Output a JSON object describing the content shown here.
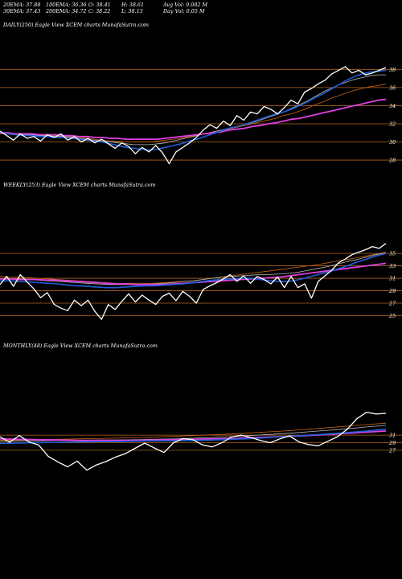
{
  "stats": {
    "ema20": "20EMA: 37.88",
    "ema100": "100EMA: 36.36",
    "open": "O: 38.41",
    "high": "H: 38.61",
    "avg_vol": "Avg Vol: 0.082  M",
    "ema30": "30EMA: 37.43",
    "ema200": "200EMA: 34.72",
    "close": "C: 38.22",
    "low": "L: 38.13",
    "day_vol": "Day Vol: 0.05 M"
  },
  "captions": {
    "daily": "DAILY(250) Eagle  View  XCEM charts MunafaSutra.com",
    "weekly": "WEEKLY(253) Eagle  View  XCEM charts MunafaSutra.com",
    "monthly": "MONTHLY(48) Eagle  View  XCEM charts MunafaSutra.com"
  },
  "colors": {
    "background": "#000000",
    "price": "#ffffff",
    "ema_blue": "#1f5fd8",
    "ema_magenta": "#e040e0",
    "ema_orange": "#c86414",
    "ema_gray": "#b8b8b8",
    "gridline": "#b4641e"
  },
  "chart_data": [
    {
      "type": "line",
      "panel": "daily",
      "yticks": [
        "38",
        "36",
        "34",
        "32",
        "30",
        "28"
      ],
      "ylim": [
        26.5,
        39.8
      ],
      "series": [
        {
          "role": "price",
          "color": "#ffffff",
          "values": [
            31.2,
            30.7,
            30.2,
            30.9,
            30.4,
            30.6,
            30.1,
            30.8,
            30.5,
            30.9,
            30.2,
            30.6,
            30.0,
            30.4,
            29.9,
            30.3,
            29.8,
            29.3,
            29.9,
            29.5,
            28.7,
            29.4,
            28.9,
            29.6,
            28.8,
            27.6,
            28.9,
            29.4,
            29.9,
            30.5,
            31.3,
            31.9,
            31.5,
            32.3,
            31.8,
            32.9,
            32.4,
            33.3,
            33.1,
            33.9,
            33.6,
            33.1,
            33.8,
            34.6,
            34.2,
            35.5,
            35.9,
            36.4,
            36.8,
            37.5,
            37.9,
            38.3,
            37.6,
            37.9,
            37.4,
            37.6,
            37.9,
            38.2
          ]
        },
        {
          "role": "ema_blue",
          "color": "#1f5fd8",
          "values": [
            31.1,
            30.9,
            30.8,
            30.7,
            30.7,
            30.6,
            30.6,
            30.5,
            30.5,
            30.4,
            30.3,
            30.2,
            30.1,
            30.0,
            29.8,
            29.6,
            29.4,
            29.3,
            29.2,
            29.1,
            29.2,
            29.4,
            29.6,
            29.8,
            30.1,
            30.3,
            30.6,
            30.9,
            31.2,
            31.5,
            31.7,
            31.9,
            32.2,
            32.5,
            32.8,
            33.1,
            33.3,
            33.6,
            34.0,
            34.4,
            34.9,
            35.3,
            35.8,
            36.3,
            36.8,
            37.2,
            37.5,
            37.7,
            37.8,
            37.9
          ]
        },
        {
          "role": "ema_gray",
          "color": "#b8b8b8",
          "values": [
            31.0,
            30.9,
            30.9,
            30.8,
            30.8,
            30.7,
            30.7,
            30.6,
            30.6,
            30.5,
            30.4,
            30.3,
            30.2,
            30.1,
            30.0,
            29.9,
            29.8,
            29.7,
            29.7,
            29.7,
            29.8,
            29.9,
            30.1,
            30.3,
            30.5,
            30.7,
            30.9,
            31.1,
            31.3,
            31.5,
            31.7,
            31.9,
            32.1,
            32.4,
            32.7,
            33.0,
            33.3,
            33.7,
            34.1,
            34.5,
            35.0,
            35.5,
            35.9,
            36.3,
            36.6,
            36.9,
            37.1,
            37.3,
            37.4,
            37.4
          ]
        },
        {
          "role": "ema_orange",
          "color": "#c86414",
          "values": [
            30.9,
            30.9,
            30.8,
            30.8,
            30.8,
            30.7,
            30.7,
            30.7,
            30.6,
            30.6,
            30.5,
            30.4,
            30.3,
            30.2,
            30.1,
            30.1,
            30.0,
            30.0,
            30.0,
            30.0,
            30.1,
            30.2,
            30.3,
            30.4,
            30.6,
            30.7,
            30.9,
            31.1,
            31.3,
            31.4,
            31.6,
            31.8,
            32.0,
            32.2,
            32.4,
            32.6,
            32.9,
            33.1,
            33.4,
            33.7,
            34.1,
            34.4,
            34.8,
            35.1,
            35.4,
            35.7,
            35.9,
            36.1,
            36.2,
            36.4
          ]
        },
        {
          "role": "ema_magenta",
          "color": "#e040e0",
          "values": [
            31.0,
            31.0,
            30.9,
            30.9,
            30.9,
            30.8,
            30.8,
            30.8,
            30.7,
            30.7,
            30.6,
            30.6,
            30.5,
            30.5,
            30.4,
            30.4,
            30.3,
            30.3,
            30.3,
            30.3,
            30.3,
            30.4,
            30.5,
            30.6,
            30.7,
            30.8,
            30.9,
            31.0,
            31.1,
            31.3,
            31.4,
            31.5,
            31.7,
            31.8,
            32.0,
            32.1,
            32.3,
            32.5,
            32.6,
            32.8,
            33.0,
            33.2,
            33.4,
            33.6,
            33.8,
            34.0,
            34.2,
            34.4,
            34.6,
            34.7
          ]
        }
      ]
    },
    {
      "type": "line",
      "panel": "weekly",
      "yticks": [
        "35",
        "33",
        "31",
        "29",
        "27",
        "25"
      ],
      "ylim": [
        23.0,
        38.5
      ],
      "series": [
        {
          "role": "price",
          "color": "#ffffff",
          "values": [
            30.0,
            31.3,
            29.7,
            31.6,
            30.4,
            29.3,
            27.9,
            28.7,
            26.8,
            26.2,
            25.8,
            27.5,
            26.6,
            27.5,
            25.7,
            24.4,
            26.8,
            26.0,
            27.3,
            28.5,
            27.2,
            28.3,
            27.5,
            26.8,
            28.1,
            28.6,
            27.4,
            28.9,
            28.1,
            27.0,
            29.2,
            29.8,
            30.3,
            30.9,
            31.6,
            30.5,
            31.4,
            30.2,
            31.3,
            30.8,
            30.1,
            31.2,
            29.5,
            31.3,
            29.5,
            30.1,
            27.8,
            30.5,
            31.4,
            32.3,
            33.5,
            34.1,
            34.8,
            35.2,
            35.6,
            36.1,
            35.8,
            36.6
          ]
        },
        {
          "role": "ema_blue",
          "color": "#1f5fd8",
          "values": [
            30.6,
            30.6,
            30.5,
            30.4,
            30.3,
            30.2,
            30.1,
            29.9,
            29.8,
            29.7,
            29.6,
            29.5,
            29.5,
            29.6,
            29.7,
            29.8,
            29.8,
            29.9,
            30.0,
            30.1,
            30.3,
            30.5,
            30.7,
            30.8,
            30.9,
            31.0,
            31.0,
            30.8,
            30.6,
            30.5,
            30.5,
            30.8,
            31.2,
            31.6,
            32.0,
            32.5,
            33.0,
            33.6,
            34.1,
            34.6,
            35.0
          ]
        },
        {
          "role": "ema_gray",
          "color": "#b8b8b8",
          "values": [
            31.0,
            30.9,
            30.9,
            30.8,
            30.7,
            30.6,
            30.5,
            30.4,
            30.3,
            30.2,
            30.1,
            30.0,
            30.0,
            30.0,
            30.0,
            30.0,
            30.1,
            30.2,
            30.3,
            30.5,
            30.6,
            30.8,
            31.0,
            31.2,
            31.3,
            31.4,
            31.5,
            31.6,
            31.6,
            31.7,
            31.8,
            32.0,
            32.3,
            32.6,
            32.9,
            33.3,
            33.7,
            34.0,
            34.4,
            34.8,
            35.1
          ]
        },
        {
          "role": "ema_orange",
          "color": "#c86414",
          "values": [
            31.3,
            31.2,
            31.2,
            31.1,
            31.0,
            30.9,
            30.8,
            30.7,
            30.6,
            30.5,
            30.4,
            30.3,
            30.2,
            30.2,
            30.2,
            30.2,
            30.2,
            30.3,
            30.4,
            30.5,
            30.6,
            30.8,
            31.0,
            31.2,
            31.4,
            31.6,
            31.8,
            32.0,
            32.2,
            32.4,
            32.6,
            32.8,
            33.0,
            33.2,
            33.5,
            33.8,
            34.0,
            34.3,
            34.6,
            34.9,
            35.2
          ]
        },
        {
          "role": "ema_magenta",
          "color": "#e040e0",
          "values": [
            30.9,
            30.9,
            30.8,
            30.8,
            30.8,
            30.7,
            30.7,
            30.6,
            30.5,
            30.4,
            30.3,
            30.2,
            30.1,
            30.1,
            30.0,
            30.0,
            30.0,
            30.0,
            30.1,
            30.2,
            30.3,
            30.4,
            30.5,
            30.6,
            30.7,
            30.8,
            30.9,
            31.0,
            31.1,
            31.2,
            31.4,
            31.6,
            31.8,
            32.0,
            32.2,
            32.4,
            32.6,
            32.8,
            33.0,
            33.2,
            33.4
          ]
        }
      ]
    },
    {
      "type": "line",
      "panel": "monthly",
      "yticks": [
        "31",
        "29",
        "27"
      ],
      "ylim": [
        18.0,
        41.5
      ],
      "series": [
        {
          "role": "price",
          "color": "#ffffff",
          "values": [
            30.6,
            29.1,
            30.9,
            29.2,
            28.4,
            25.4,
            23.9,
            22.6,
            24.1,
            21.7,
            23.1,
            24.0,
            25.2,
            26.1,
            27.5,
            28.9,
            27.6,
            26.4,
            29.0,
            30.1,
            29.8,
            28.4,
            27.9,
            29.0,
            30.5,
            31.0,
            30.4,
            29.6,
            29.0,
            30.0,
            30.8,
            29.2,
            28.5,
            28.2,
            29.4,
            30.6,
            32.6,
            35.4,
            37.1,
            36.6,
            36.8
          ]
        },
        {
          "role": "ema_blue",
          "color": "#1f5fd8",
          "values": [
            28.8,
            28.9,
            29.0,
            29.1,
            29.2,
            29.3,
            29.3,
            29.4,
            29.5,
            29.5,
            29.6,
            29.7,
            29.9,
            30.1,
            30.4,
            30.7,
            31.0,
            31.3,
            31.7,
            32.1,
            32.6
          ]
        },
        {
          "role": "ema_gray",
          "color": "#b8b8b8",
          "values": [
            29.4,
            29.5,
            29.5,
            29.6,
            29.6,
            29.7,
            29.7,
            29.8,
            29.9,
            30.0,
            30.2,
            30.4,
            30.6,
            30.9,
            31.2,
            31.5,
            31.9,
            32.3,
            32.7,
            33.2,
            33.6
          ]
        },
        {
          "role": "ema_orange",
          "color": "#c86414",
          "values": [
            29.6,
            29.7,
            29.8,
            29.9,
            30.0,
            30.1,
            30.2,
            30.3,
            30.5,
            30.7,
            30.9,
            31.1,
            31.3,
            31.6,
            31.9,
            32.2,
            32.6,
            33.0,
            33.4,
            33.8,
            34.2
          ]
        },
        {
          "role": "ema_magenta",
          "color": "#e040e0",
          "values": [
            30.0,
            29.9,
            29.8,
            29.7,
            29.6,
            29.6,
            29.6,
            29.6,
            29.7,
            29.8,
            29.9,
            30.0,
            30.1,
            30.3,
            30.5,
            30.7,
            30.9,
            31.2,
            31.5,
            31.8,
            32.1
          ]
        }
      ]
    }
  ]
}
